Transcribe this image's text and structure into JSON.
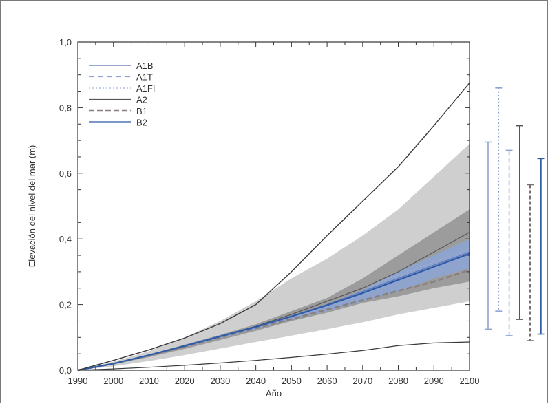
{
  "chart_data": {
    "type": "line",
    "title": "",
    "xlabel": "Año",
    "ylabel": "Elevación del nivel del mar (m)",
    "xlim": [
      1990,
      2100
    ],
    "ylim": [
      0,
      1.0
    ],
    "x_ticks": [
      1990,
      2000,
      2010,
      2020,
      2030,
      2040,
      2050,
      2060,
      2070,
      2080,
      2090,
      2100
    ],
    "y_ticks": [
      0.0,
      0.2,
      0.4,
      0.6,
      0.8,
      1.0
    ],
    "y_tick_labels": [
      "0,0",
      "0,2",
      "0,4",
      "0,6",
      "0,8",
      "1,0"
    ],
    "grid": false,
    "legend_position": "top-left",
    "x": [
      1990,
      2000,
      2010,
      2020,
      2030,
      2040,
      2050,
      2060,
      2070,
      2080,
      2090,
      2100
    ],
    "bands": [
      {
        "lower": [
          0,
          0.012,
          0.028,
          0.046,
          0.066,
          0.086,
          0.105,
          0.125,
          0.146,
          0.17,
          0.19,
          0.21
        ],
        "upper": [
          0,
          0.026,
          0.058,
          0.1,
          0.15,
          0.21,
          0.28,
          0.34,
          0.41,
          0.49,
          0.59,
          0.69
        ],
        "color": "#cfcfcf"
      },
      {
        "lower": [
          0,
          0.018,
          0.04,
          0.065,
          0.092,
          0.12,
          0.15,
          0.175,
          0.205,
          0.225,
          0.25,
          0.27
        ],
        "upper": [
          0,
          0.022,
          0.048,
          0.078,
          0.108,
          0.14,
          0.18,
          0.22,
          0.28,
          0.35,
          0.42,
          0.49
        ],
        "color": "#9c9c9c"
      },
      {
        "lower": [
          0,
          0.02,
          0.045,
          0.07,
          0.098,
          0.125,
          0.155,
          0.18,
          0.21,
          0.24,
          0.28,
          0.31
        ],
        "upper": [
          0,
          0.021,
          0.046,
          0.074,
          0.103,
          0.13,
          0.165,
          0.2,
          0.245,
          0.3,
          0.35,
          0.4
        ],
        "color": "#8fa4cd"
      }
    ],
    "series": [
      {
        "name": "A1B",
        "values": [
          0,
          0.02,
          0.046,
          0.074,
          0.103,
          0.132,
          0.165,
          0.2,
          0.24,
          0.28,
          0.32,
          0.36
        ],
        "color": "#5b74b5",
        "dash": "",
        "width": 1.2
      },
      {
        "name": "A1T",
        "values": [
          0,
          0.02,
          0.045,
          0.073,
          0.1,
          0.128,
          0.16,
          0.19,
          0.23,
          0.27,
          0.31,
          0.35
        ],
        "color": "#8fa3d6",
        "dash": "8 5",
        "width": 1.2
      },
      {
        "name": "A1FI",
        "values": [
          0,
          0.021,
          0.047,
          0.076,
          0.106,
          0.135,
          0.17,
          0.21,
          0.25,
          0.29,
          0.33,
          0.37
        ],
        "color": "#9fb2de",
        "dash": "2 3",
        "width": 1.2
      },
      {
        "name": "A2",
        "values": [
          0,
          0.02,
          0.046,
          0.075,
          0.104,
          0.134,
          0.17,
          0.21,
          0.25,
          0.3,
          0.36,
          0.42
        ],
        "color": "#555555",
        "dash": "",
        "width": 1.2
      },
      {
        "name": "B1",
        "values": [
          0,
          0.02,
          0.045,
          0.072,
          0.1,
          0.128,
          0.156,
          0.185,
          0.213,
          0.242,
          0.27,
          0.305
        ],
        "color": "#8a7f7c",
        "dash": "8 4",
        "width": 2.6
      },
      {
        "name": "B2",
        "values": [
          0,
          0.02,
          0.046,
          0.074,
          0.103,
          0.132,
          0.164,
          0.198,
          0.235,
          0.275,
          0.315,
          0.355
        ],
        "color": "#2d5ba8",
        "dash": "",
        "width": 2.2
      },
      {
        "name": "",
        "values": [
          0,
          0.03,
          0.062,
          0.098,
          0.142,
          0.2,
          0.3,
          0.41,
          0.515,
          0.62,
          0.745,
          0.875
        ],
        "color": "#3a3a3a",
        "dash": "",
        "width": 1.4
      },
      {
        "name": "",
        "values": [
          0,
          0.004,
          0.009,
          0.015,
          0.022,
          0.03,
          0.039,
          0.049,
          0.06,
          0.075,
          0.083,
          0.086
        ],
        "color": "#3a3a3a",
        "dash": "",
        "width": 1.2
      }
    ],
    "range_bars": [
      {
        "scenario": "A1B",
        "min": 0.125,
        "max": 0.695,
        "color": "#8fa3cf",
        "dash": "",
        "width": 1.6
      },
      {
        "scenario": "A1T",
        "min": 0.18,
        "max": 0.86,
        "color": "#8fa3d6",
        "dash": "2 3",
        "width": 1.6
      },
      {
        "scenario": "A1FI",
        "min": 0.105,
        "max": 0.67,
        "color": "#8fa3d6",
        "dash": "7 4",
        "width": 1.6
      },
      {
        "scenario": "A2",
        "min": 0.155,
        "max": 0.745,
        "color": "#555555",
        "dash": "",
        "width": 1.8
      },
      {
        "scenario": "B1",
        "min": 0.09,
        "max": 0.565,
        "color": "#7a6f6c",
        "dash": "5 3",
        "width": 3.2
      },
      {
        "scenario": "B2",
        "min": 0.11,
        "max": 0.645,
        "color": "#2d5ba8",
        "dash": "",
        "width": 2.4
      }
    ]
  }
}
